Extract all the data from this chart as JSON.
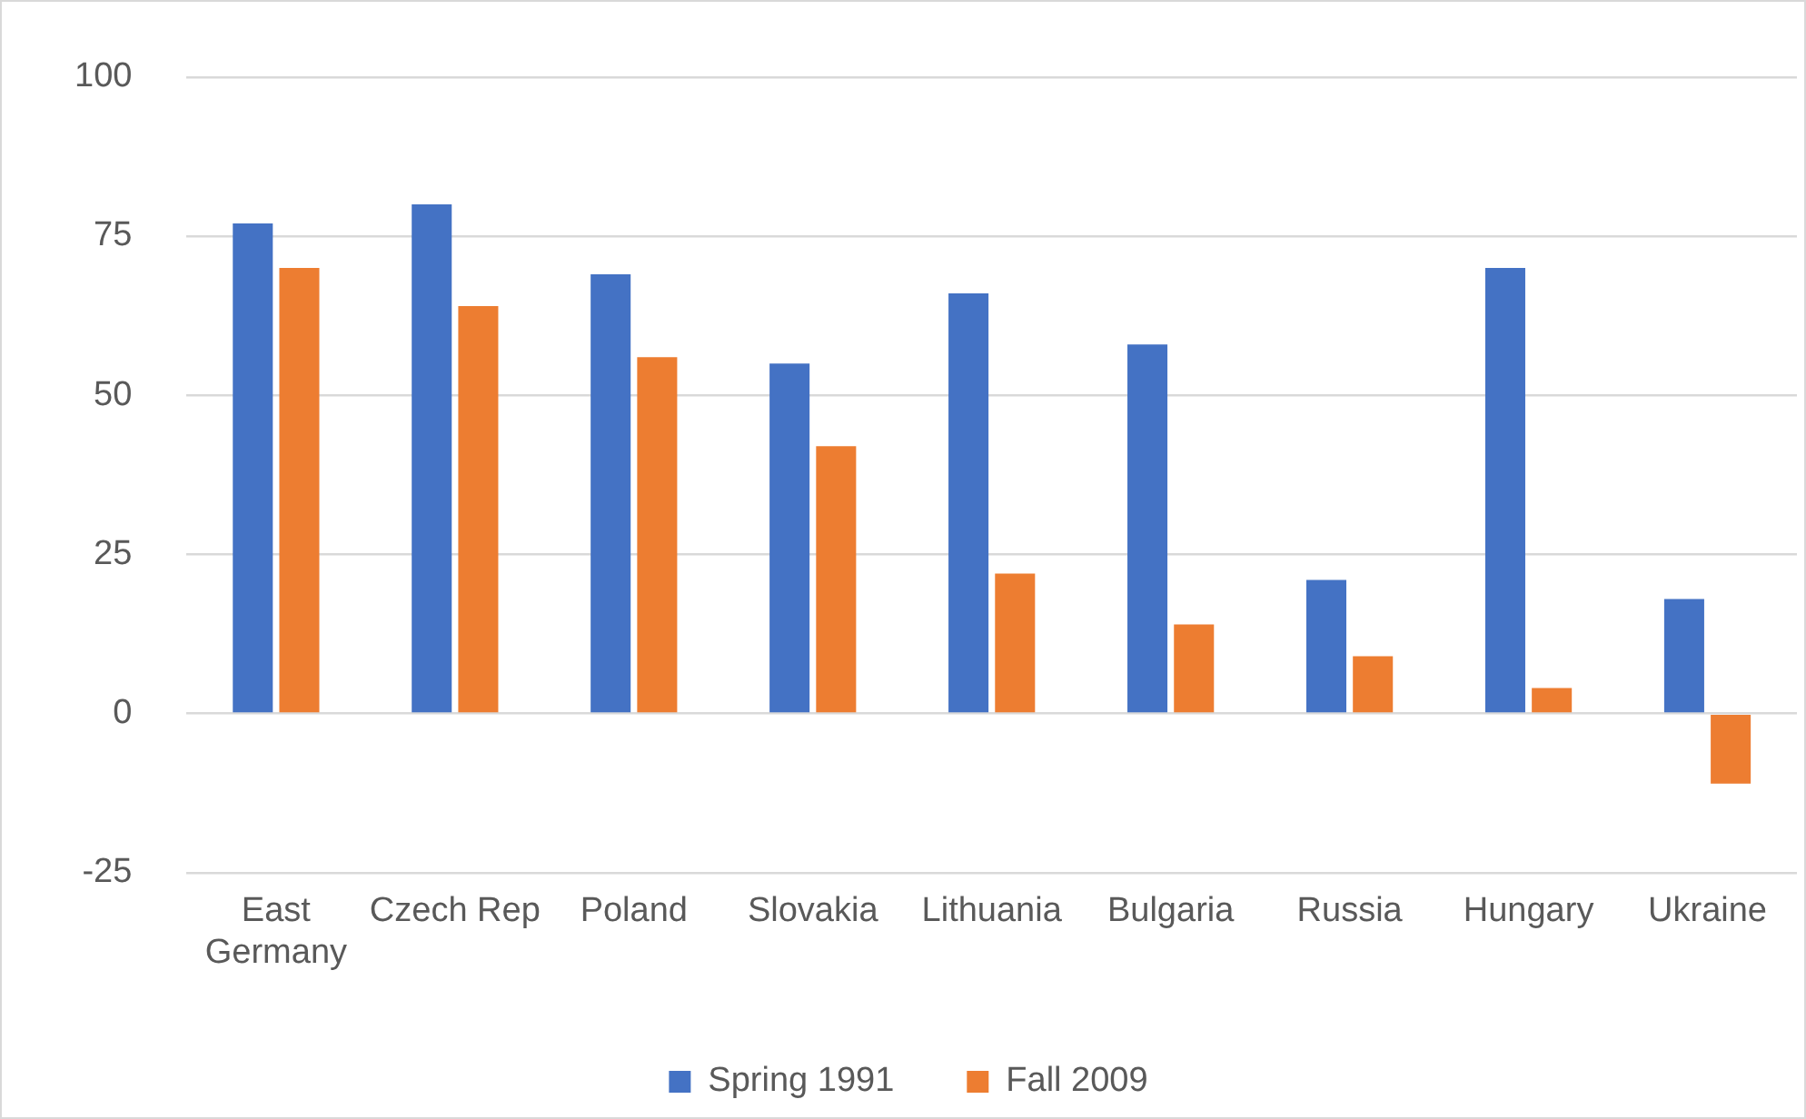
{
  "chart_data": {
    "type": "bar",
    "categories": [
      "East Germany",
      "Czech Rep",
      "Poland",
      "Slovakia",
      "Lithuania",
      "Bulgaria",
      "Russia",
      "Hungary",
      "Ukraine"
    ],
    "series": [
      {
        "name": "Spring 1991",
        "color": "#4472c4",
        "values": [
          77,
          80,
          69,
          55,
          66,
          58,
          21,
          70,
          18
        ]
      },
      {
        "name": "Fall 2009",
        "color": "#ed7d31",
        "values": [
          70,
          64,
          56,
          42,
          22,
          14,
          9,
          4,
          -11
        ]
      }
    ],
    "ylim": [
      -25,
      100
    ],
    "yticks": [
      -25,
      0,
      25,
      50,
      75,
      100
    ],
    "grid": "y",
    "legend": "bottom"
  }
}
